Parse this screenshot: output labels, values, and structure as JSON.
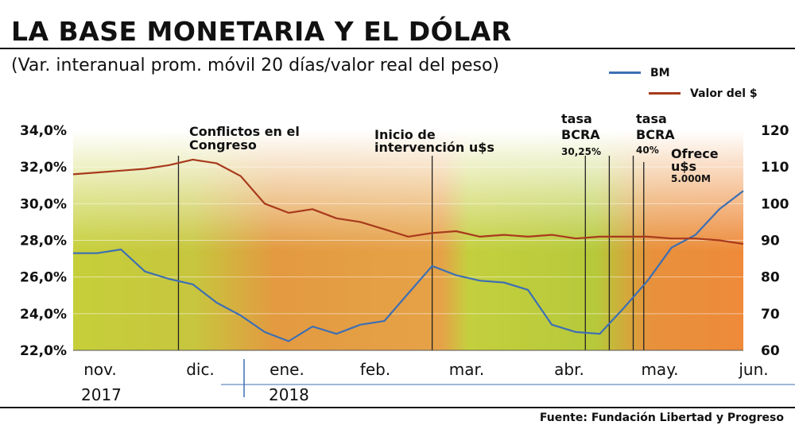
{
  "header": {
    "title": "LA BASE MONETARIA Y EL DÓLAR",
    "subtitle": "(Var. interanual prom. móvil 20 días/valor real del peso)"
  },
  "source": "Fuente: Fundación Libertad y Progreso",
  "colors": {
    "bm": "#3d6fb4",
    "valor": "#a83a1c",
    "bg_green": "#b7c93a",
    "bg_orange": "#e8913c"
  },
  "chart_data": {
    "type": "line",
    "title": "LA BASE MONETARIA Y EL DÓLAR",
    "subtitle": "(Var. interanual prom. móvil 20 días/valor real del peso)",
    "y_left": {
      "min": 22,
      "max": 34,
      "ticks": [
        "22,0%",
        "24,0%",
        "26,0%",
        "28,0%",
        "30,0%",
        "32,0%",
        "34,0%"
      ]
    },
    "y_right": {
      "min": 60,
      "max": 120,
      "ticks": [
        "60",
        "70",
        "80",
        "90",
        "100",
        "110",
        "120"
      ]
    },
    "x_labels": [
      "nov.",
      "dic.",
      "ene.",
      "feb.",
      "mar.",
      "abr.",
      "may.",
      "jun."
    ],
    "year_labels": [
      "2017",
      "2018"
    ],
    "x": [
      0,
      0.25,
      0.5,
      0.75,
      1,
      1.25,
      1.5,
      1.75,
      2,
      2.25,
      2.5,
      2.75,
      3,
      3.25,
      3.5,
      3.75,
      4,
      4.25,
      4.5,
      4.75,
      5,
      5.25,
      5.5,
      5.75,
      6,
      6.25,
      6.5,
      6.75,
      7
    ],
    "series": [
      {
        "name": "BM",
        "axis": "left",
        "values": [
          27.3,
          27.3,
          27.5,
          26.3,
          25.9,
          25.6,
          24.6,
          23.9,
          23.0,
          22.5,
          23.3,
          22.9,
          23.4,
          23.6,
          25.1,
          26.6,
          26.1,
          25.8,
          25.7,
          25.3,
          23.4,
          23.0,
          22.9,
          24.3,
          25.8,
          27.6,
          28.3,
          29.7,
          30.7
        ]
      },
      {
        "name": "Valor del $",
        "axis": "right",
        "values": [
          108,
          108.5,
          109,
          109.5,
          110.5,
          112,
          111,
          107.5,
          100,
          97.5,
          98.5,
          96,
          95,
          93,
          91,
          92,
          92.5,
          91,
          91.5,
          91,
          91.5,
          90.5,
          91,
          91,
          91,
          90.5,
          90.5,
          90,
          89
        ]
      }
    ],
    "events": [
      {
        "label": "Conflictos en el Congreso",
        "x": 1.1
      },
      {
        "label": "Inicio de intervención u$s",
        "x": 3.75
      },
      {
        "label": "tasa BCRA 30,25%",
        "x": 5.35
      },
      {
        "label": "tasa BCRA 40%",
        "x": 5.6
      },
      {
        "label": "Ofrece u$s 5.000M",
        "x": 5.85
      }
    ]
  },
  "legend": {
    "bm": "BM",
    "valor": "Valor del $"
  },
  "annotations": {
    "e1_l1": "Conflictos en el",
    "e1_l2": "Congreso",
    "e2_l1": "Inicio de",
    "e2_l2": "intervención u$s",
    "e3_l1": "tasa",
    "e3_l2": "BCRA",
    "e3_l3": "30,25%",
    "e4_l1": "tasa",
    "e4_l2": "BCRA",
    "e4_l3": "40%",
    "e5_l1": "Ofrece",
    "e5_l2": "u$s",
    "e5_l3": "5.000M"
  }
}
